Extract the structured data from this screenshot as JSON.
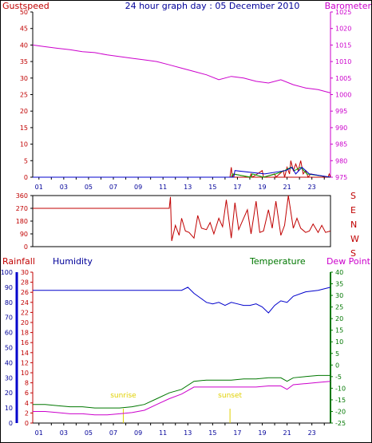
{
  "colors": {
    "red": "#c00000",
    "magenta": "#cc00cc",
    "navy": "#000099",
    "blue": "#0000cc",
    "green": "#007700",
    "bright_green": "#00aa00",
    "yellow": "#e0d000",
    "axis": "#000000",
    "grid": "#c8c8c8"
  },
  "chart_data": [
    {
      "type": "line",
      "name": "top-panel",
      "title": "24 hour graph day : 05 December 2010",
      "left_label": "Gustspeed",
      "right_label": "Barometer",
      "x_ticks": [
        "01",
        "03",
        "05",
        "07",
        "09",
        "11",
        "13",
        "15",
        "17",
        "19",
        "21",
        "23"
      ],
      "xlim": [
        0,
        24
      ],
      "left_ylim": [
        0,
        50
      ],
      "left_ticks": [
        "0",
        "5",
        "10",
        "15",
        "20",
        "25",
        "30",
        "35",
        "40",
        "45",
        "50"
      ],
      "right_ylim": [
        975,
        1025
      ],
      "right_ticks": [
        "975",
        "980",
        "985",
        "990",
        "995",
        "1000",
        "1005",
        "1010",
        "1015",
        "1020",
        "1025"
      ],
      "series": [
        {
          "role": "barometer",
          "x": [
            0,
            1,
            2,
            3,
            4,
            5,
            6,
            7,
            8,
            9,
            10,
            11,
            12,
            13,
            14,
            15,
            16,
            17,
            18,
            19,
            20,
            21,
            22,
            23,
            24
          ],
          "y": [
            1015,
            1014.5,
            1014,
            1013.6,
            1013,
            1012.7,
            1012,
            1011.5,
            1011,
            1010.5,
            1010,
            1009,
            1008,
            1007,
            1006,
            1004.5,
            1005.5,
            1005,
            1004,
            1003.5,
            1004.5,
            1003,
            1002,
            1001.5,
            1000.5
          ]
        },
        {
          "role": "gustspeed",
          "x": [
            0,
            15.9,
            16,
            16.1,
            16.2,
            17.5,
            17.6,
            17.7,
            18.5,
            18.6,
            19.5,
            19.6,
            20.2,
            20.3,
            20.5,
            20.7,
            20.8,
            21,
            21.2,
            21.4,
            21.6,
            21.8,
            22,
            22.2,
            22.4,
            23.8,
            23.9,
            24
          ],
          "y": [
            0,
            0,
            3,
            0,
            1,
            0,
            1,
            0,
            2,
            0,
            1,
            0,
            2,
            0,
            3,
            1,
            5,
            2,
            4,
            2,
            5,
            1,
            2,
            0,
            1,
            0,
            1,
            0
          ]
        },
        {
          "role": "gustspeed-green",
          "x": [
            0,
            16,
            16.1,
            17.6,
            17.7,
            18.6,
            19.6,
            20.3,
            20.8,
            21.1,
            21.6,
            22.1,
            24
          ],
          "y": [
            0,
            0,
            1,
            0,
            1,
            0,
            1,
            2,
            3,
            2,
            3,
            1,
            0
          ]
        },
        {
          "role": "gustspeed-blue",
          "x": [
            0,
            16.2,
            16.3,
            18.7,
            20.4,
            20.9,
            21.2,
            21.7,
            22.3,
            24
          ],
          "y": [
            0,
            0,
            2,
            1,
            2,
            3,
            1,
            3,
            1,
            0
          ]
        }
      ]
    },
    {
      "type": "line",
      "name": "wind-direction-panel",
      "ylim": [
        0,
        360
      ],
      "y_ticks": [
        "0",
        "90",
        "180",
        "270",
        "360"
      ],
      "right_letters": [
        "S",
        "E",
        "N",
        "W",
        "S"
      ],
      "xlim": [
        0,
        24
      ],
      "series": [
        {
          "role": "wind-direction",
          "x": [
            0,
            1,
            2,
            3,
            4,
            5,
            6,
            7,
            8,
            9,
            10,
            11,
            11.1,
            11.2,
            11.5,
            11.8,
            12,
            12.3,
            12.6,
            13,
            13.3,
            13.6,
            14,
            14.3,
            14.6,
            15,
            15.3,
            15.6,
            16,
            16.3,
            16.6,
            17,
            17.3,
            17.6,
            18,
            18.3,
            18.6,
            19,
            19.3,
            19.6,
            20,
            20.3,
            20.6,
            21,
            21.3,
            21.6,
            22,
            22.3,
            22.6,
            23,
            23.3,
            23.6,
            24
          ],
          "y": [
            270,
            270,
            270,
            270,
            270,
            270,
            270,
            270,
            270,
            270,
            270,
            270,
            350,
            40,
            150,
            80,
            200,
            110,
            100,
            60,
            220,
            130,
            120,
            170,
            90,
            200,
            140,
            330,
            60,
            310,
            120,
            200,
            260,
            90,
            320,
            100,
            110,
            260,
            130,
            320,
            80,
            150,
            360,
            130,
            200,
            130,
            100,
            110,
            160,
            100,
            150,
            100,
            110
          ]
        }
      ]
    },
    {
      "type": "line",
      "name": "bottom-panel",
      "left_label": "Rainfall",
      "humidity_label": "Humidity",
      "temperature_label": "Temperature",
      "dewpoint_label": "Dew Point",
      "x_ticks": [
        "01",
        "03",
        "05",
        "07",
        "09",
        "11",
        "13",
        "15",
        "17",
        "19",
        "21",
        "23"
      ],
      "xlim": [
        0,
        24
      ],
      "rain_ylim": [
        0,
        30
      ],
      "rain_ticks": [
        "0",
        "2",
        "4",
        "6",
        "8",
        "10",
        "12",
        "14",
        "16",
        "18",
        "20",
        "22",
        "24",
        "26",
        "28",
        "30"
      ],
      "humidity_ylim": [
        0,
        100
      ],
      "humidity_ticks": [
        "0",
        "10",
        "20",
        "30",
        "40",
        "50",
        "60",
        "70",
        "80",
        "90",
        "100"
      ],
      "temp_ylim": [
        -25,
        40
      ],
      "temp_ticks": [
        "-25",
        "-20",
        "-15",
        "-10",
        "-5",
        "0",
        "5",
        "10",
        "15",
        "20",
        "25",
        "30",
        "35",
        "40"
      ],
      "annotations": [
        {
          "text": "sunrise",
          "x": 7.3
        },
        {
          "text": "sunset",
          "x": 15.9
        }
      ],
      "series": [
        {
          "role": "humidity",
          "x": [
            0,
            2,
            4,
            6,
            8,
            10,
            11,
            12,
            12.5,
            13,
            13.5,
            14,
            14.5,
            15,
            15.5,
            16,
            16.5,
            17,
            17.5,
            18,
            18.5,
            19,
            19.5,
            20,
            20.5,
            21,
            22,
            23,
            24
          ],
          "y": [
            88,
            88,
            88,
            88,
            88,
            88,
            88,
            88,
            90,
            86,
            83,
            80,
            79,
            80,
            78,
            80,
            79,
            78,
            78,
            79,
            77,
            73,
            78,
            81,
            80,
            84,
            87,
            88,
            90
          ]
        },
        {
          "role": "temperature",
          "x": [
            0,
            1,
            2,
            3,
            4,
            5,
            6,
            7,
            8,
            9,
            10,
            11,
            12,
            13,
            14,
            15,
            16,
            17,
            18,
            19,
            20,
            20.5,
            21,
            22,
            23,
            24
          ],
          "y": [
            -17,
            -17,
            -17.5,
            -18,
            -18,
            -18.5,
            -18.5,
            -18.5,
            -18,
            -17,
            -14.5,
            -12,
            -10.5,
            -7,
            -6.5,
            -6.5,
            -6.5,
            -6,
            -6,
            -5.5,
            -5.5,
            -7,
            -5.5,
            -5,
            -4.5,
            -4.5
          ]
        },
        {
          "role": "dew-point",
          "x": [
            0,
            1,
            2,
            3,
            4,
            5,
            6,
            7,
            8,
            9,
            10,
            11,
            12,
            13,
            14,
            15,
            16,
            17,
            18,
            19,
            20,
            20.5,
            21,
            22,
            23,
            24
          ],
          "y": [
            -20,
            -20,
            -20.5,
            -21,
            -21,
            -21.5,
            -21.5,
            -21,
            -20.5,
            -19.5,
            -17,
            -14.5,
            -12.5,
            -9.5,
            -9.5,
            -9.5,
            -9.5,
            -9.5,
            -9.5,
            -9,
            -9,
            -10.5,
            -8.5,
            -8,
            -7.5,
            -7
          ]
        }
      ]
    }
  ]
}
